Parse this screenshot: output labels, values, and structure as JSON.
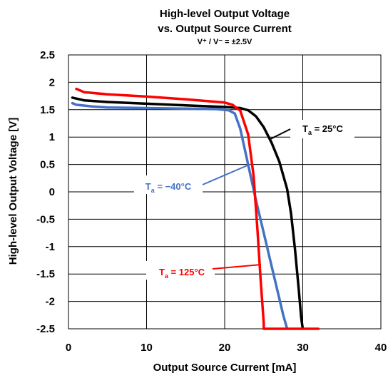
{
  "chart_data": {
    "type": "line",
    "title": "High-level Output Voltage",
    "title_line2": "vs. Output Source Current",
    "subtitle": "V⁺ / V⁻ = ±2.5V",
    "xlabel": "Output Source Current [mA]",
    "ylabel": "High-level Output Voltage [V]",
    "xlim": [
      0,
      40
    ],
    "ylim": [
      -2.5,
      2.5
    ],
    "x_ticks": [
      0,
      10,
      20,
      30,
      40
    ],
    "y_ticks": [
      2.5,
      2,
      1.5,
      1,
      0.5,
      0,
      -0.5,
      -1,
      -1.5,
      -2,
      -2.5
    ],
    "x_tick_labels": [
      "0",
      "10",
      "20",
      "30",
      "40"
    ],
    "y_tick_labels": [
      "2.5",
      "2",
      "1.5",
      "1",
      "0.5",
      "0",
      "-0.5",
      "-1",
      "-1.5",
      "-2",
      "-2.5"
    ],
    "grid": true,
    "series": [
      {
        "name": "25°C",
        "label_prefix": "T",
        "label_sub": "a",
        "label_suffix": " = 25°C",
        "color": "#000000",
        "x": [
          0.5,
          2,
          5,
          10,
          15,
          20,
          22,
          23,
          24,
          25,
          26,
          27,
          28,
          28.5,
          29,
          29.5,
          29.8,
          30
        ],
        "y": [
          1.72,
          1.67,
          1.64,
          1.61,
          1.58,
          1.55,
          1.53,
          1.49,
          1.38,
          1.18,
          0.9,
          0.55,
          0.05,
          -0.4,
          -1.05,
          -1.8,
          -2.3,
          -2.5
        ]
      },
      {
        "name": "−40°C",
        "label_prefix": "T",
        "label_sub": "a",
        "label_suffix": " = −40°C",
        "color": "#4472C4",
        "x": [
          0.5,
          1,
          3,
          5,
          10,
          15,
          19,
          20.5,
          21.3,
          22,
          23,
          24,
          25,
          26,
          27,
          27.5,
          28
        ],
        "y": [
          1.62,
          1.59,
          1.56,
          1.54,
          1.53,
          1.52,
          1.51,
          1.49,
          1.43,
          1.15,
          0.5,
          -0.15,
          -0.75,
          -1.35,
          -1.95,
          -2.25,
          -2.5
        ]
      },
      {
        "name": "125°C",
        "label_prefix": "T",
        "label_sub": "a",
        "label_suffix": " = 125°C",
        "color": "#FF0000",
        "x": [
          1,
          2,
          5,
          10,
          15,
          20,
          21,
          22,
          23,
          23.7,
          24.2,
          24.6,
          24.9,
          25,
          25,
          25.5,
          27,
          32
        ],
        "y": [
          1.88,
          1.82,
          1.78,
          1.74,
          1.69,
          1.63,
          1.59,
          1.48,
          1.05,
          0.3,
          -0.7,
          -1.6,
          -2.2,
          -2.4,
          -2.5,
          -2.5,
          -2.5,
          -2.5
        ]
      }
    ]
  }
}
